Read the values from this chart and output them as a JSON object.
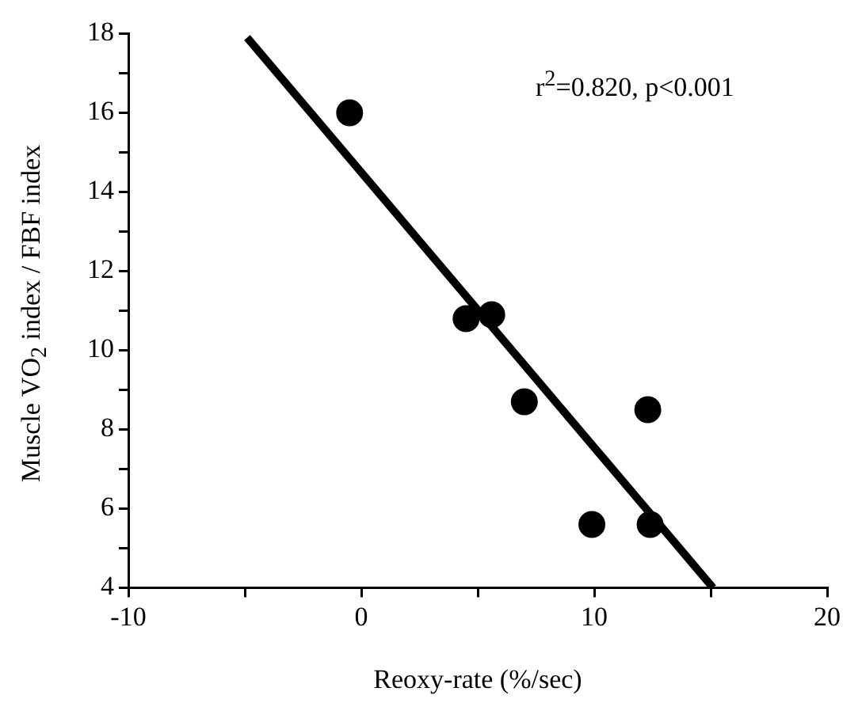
{
  "chart_data": {
    "type": "scatter",
    "xlabel": "Reoxy-rate (%/sec)",
    "ylabel": "Muscle VO$_{2}$ index / FBF index",
    "annotations": [
      "r$^{2}$=0.820, p<0.001"
    ],
    "series": [
      {
        "color": "#000000",
        "x": [
          -0.5,
          4.5,
          5.6,
          7.0,
          12.3,
          9.9,
          12.4
        ],
        "values": [
          16.0,
          10.8,
          10.9,
          8.7,
          8.5,
          5.6,
          5.6
        ]
      },
      {
        "type": "line",
        "color": "#000000",
        "marker": "none",
        "x": [
          -4.9,
          15.1
        ],
        "values": [
          17.9,
          4.0
        ]
      }
    ],
    "marker": "circle",
    "grid": false,
    "legend": false,
    "xlim": [
      -10,
      20
    ],
    "xticks": [
      -10,
      {
        "value": -5,
        "label": null
      },
      0,
      {
        "value": 5,
        "label": null
      },
      10,
      {
        "value": 15,
        "label": null
      },
      20
    ],
    "ylim": [
      4,
      18
    ],
    "yticks": [
      4,
      {
        "value": 5,
        "label": null
      },
      6,
      {
        "value": 7,
        "label": null
      },
      8,
      {
        "value": 9,
        "label": null
      },
      10,
      {
        "value": 11,
        "label": null
      },
      12,
      {
        "value": 13,
        "label": null
      },
      14,
      {
        "value": 15,
        "label": null
      },
      16,
      {
        "value": 17,
        "label": null
      },
      18
    ]
  }
}
